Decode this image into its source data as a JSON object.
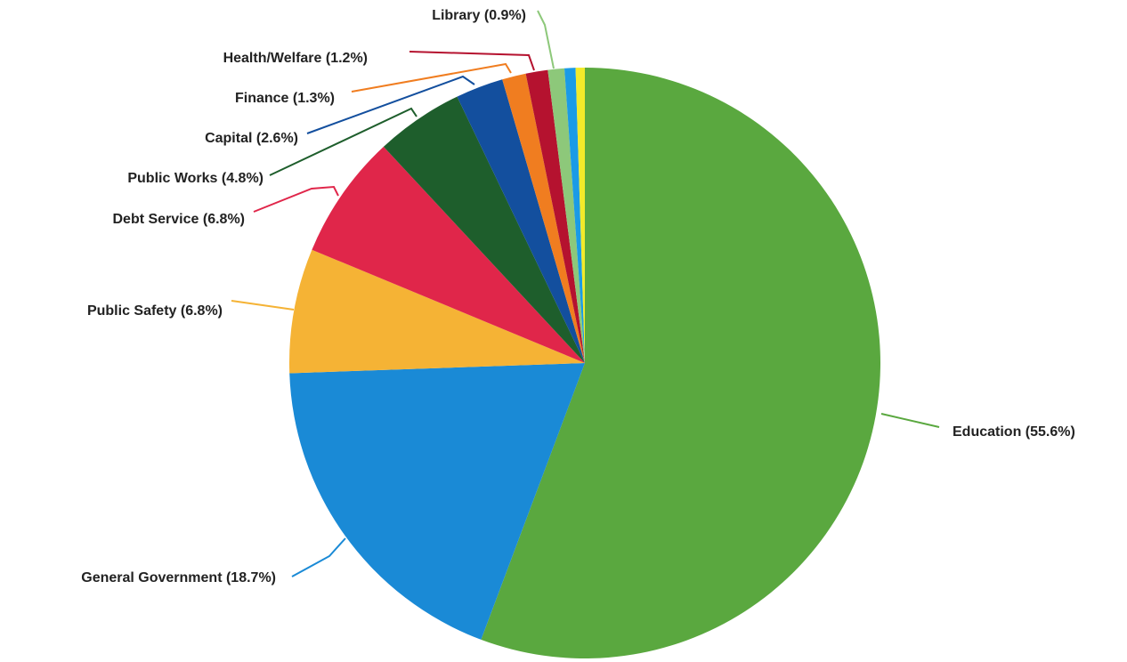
{
  "chart_data": {
    "type": "pie",
    "title": "",
    "slices": [
      {
        "label": "Education (55.6%)",
        "value": 55.6,
        "color": "#5aa83f"
      },
      {
        "label": "General Government (18.7%)",
        "value": 18.7,
        "color": "#1a8ad6"
      },
      {
        "label": "Public Safety (6.8%)",
        "value": 6.8,
        "color": "#f5b335"
      },
      {
        "label": "Debt Service (6.8%)",
        "value": 6.8,
        "color": "#e0264a"
      },
      {
        "label": "Public Works (4.8%)",
        "value": 4.8,
        "color": "#1e5e2c"
      },
      {
        "label": "Capital (2.6%)",
        "value": 2.6,
        "color": "#134f9e"
      },
      {
        "label": "Finance (1.3%)",
        "value": 1.3,
        "color": "#f07d20"
      },
      {
        "label": "Health/Welfare (1.2%)",
        "value": 1.2,
        "color": "#b5122f"
      },
      {
        "label": "Library (0.9%)",
        "value": 0.9,
        "color": "#8dc87a"
      },
      {
        "label": "",
        "value": 0.6,
        "color": "#1a9be6"
      },
      {
        "label": "",
        "value": 0.5,
        "color": "#f2ea2a"
      }
    ],
    "start_angle": "12 o'clock",
    "direction": "clockwise"
  }
}
